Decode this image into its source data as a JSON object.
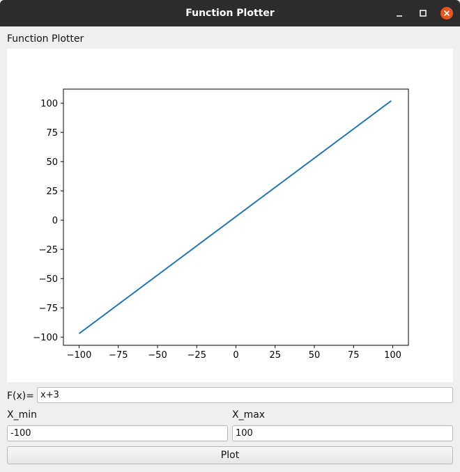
{
  "window": {
    "title": "Function Plotter"
  },
  "header_label": "Function Plotter",
  "form": {
    "fx_label": "F(x)=",
    "fx_value": "x+3",
    "xmin_label": "X_min",
    "xmin_value": "-100",
    "xmax_label": "X_max",
    "xmax_value": "100",
    "plot_label": "Plot"
  },
  "colors": {
    "line": "#1f77b4",
    "close_button": "#e95420"
  },
  "icons": [
    "minimize-icon",
    "maximize-icon",
    "close-icon"
  ],
  "chart_data": {
    "type": "line",
    "series": [
      {
        "x": [
          -100,
          99
        ],
        "y": [
          -97,
          102
        ]
      }
    ],
    "xticks": [
      -100,
      -75,
      -50,
      -25,
      0,
      25,
      50,
      75,
      100
    ],
    "yticks": [
      -100,
      -75,
      -50,
      -25,
      0,
      25,
      50,
      75,
      100
    ],
    "xtick_labels": [
      "−100",
      "−75",
      "−50",
      "−25",
      "0",
      "25",
      "50",
      "75",
      "100"
    ],
    "ytick_labels": [
      "−100",
      "−75",
      "−50",
      "−25",
      "0",
      "25",
      "50",
      "75",
      "100"
    ],
    "xlim": [
      -110,
      110
    ],
    "ylim": [
      -107,
      112
    ],
    "grid": false
  }
}
